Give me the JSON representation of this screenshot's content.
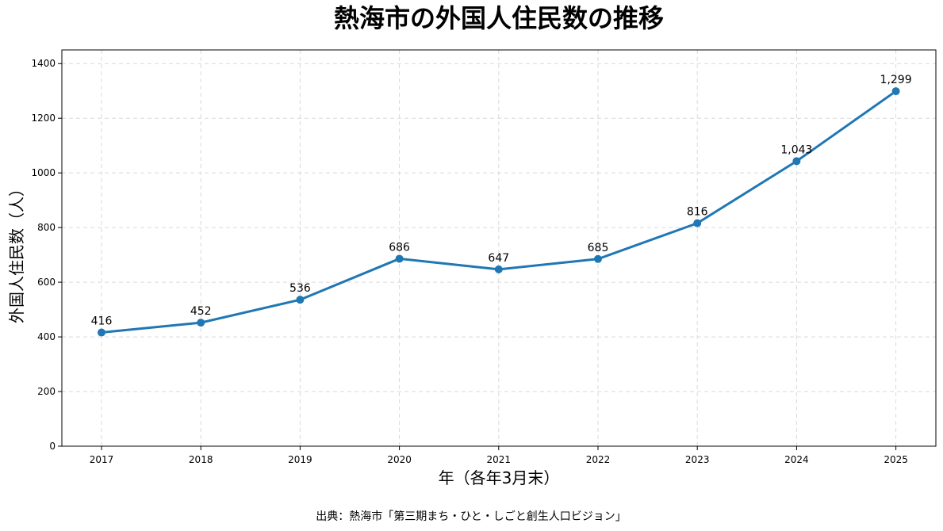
{
  "chart_data": {
    "type": "line",
    "title": "熱海市の外国人住民数の推移",
    "xlabel": "年（各年3月末）",
    "ylabel": "外国人住民数（人）",
    "categories": [
      "2017",
      "2018",
      "2019",
      "2020",
      "2021",
      "2022",
      "2023",
      "2024",
      "2025"
    ],
    "series": [
      {
        "values": [
          416,
          452,
          536,
          686,
          647,
          685,
          816,
          1043,
          1299
        ],
        "data_labels": [
          "416",
          "452",
          "536",
          "686",
          "647",
          "685",
          "816",
          "1,043",
          "1,299"
        ],
        "color": "#1f77b4",
        "marker": "circle"
      }
    ],
    "ylim": [
      0,
      1450
    ],
    "yticks": [
      0,
      200,
      400,
      600,
      800,
      1000,
      1200,
      1400
    ],
    "grid": true,
    "source_note": "出典：熱海市「第三期まち・ひと・しごと創生人口ビジョン」"
  }
}
